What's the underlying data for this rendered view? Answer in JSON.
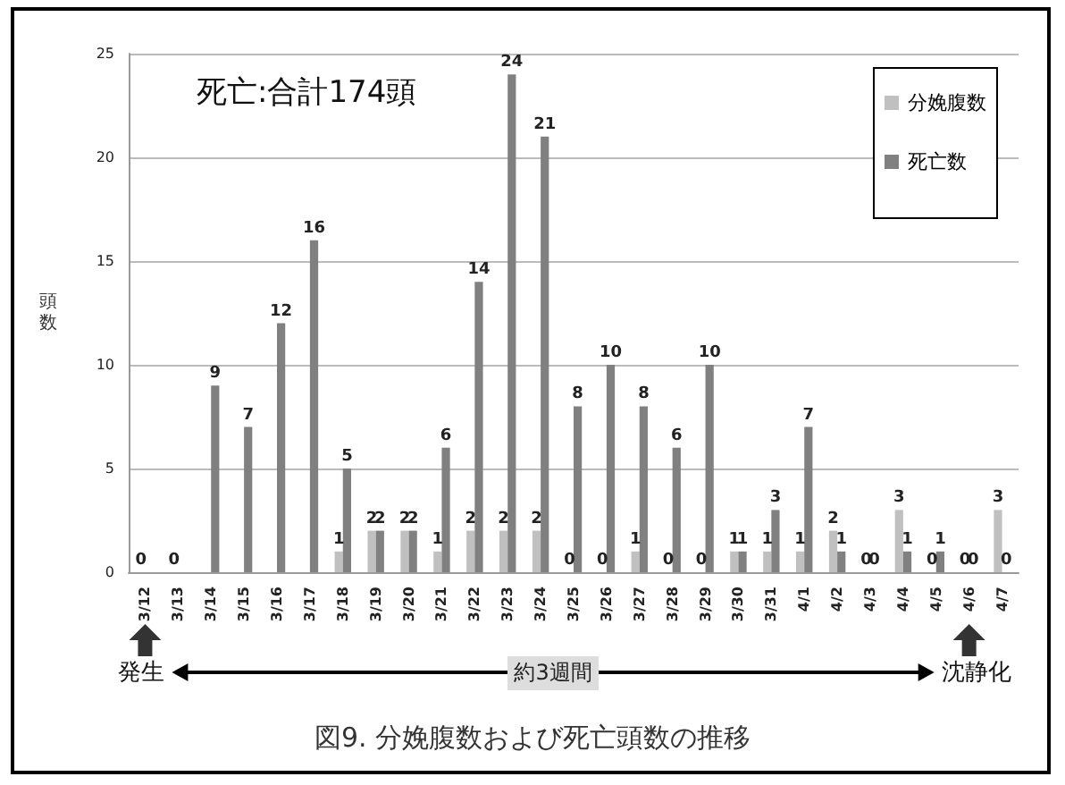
{
  "chart_data": {
    "type": "bar",
    "title": "図9. 分娩腹数および死亡頭数の推移",
    "ylabel": "頭数",
    "categories": [
      "3/12",
      "3/13",
      "3/14",
      "3/15",
      "3/16",
      "3/17",
      "3/18",
      "3/19",
      "3/20",
      "3/21",
      "3/22",
      "3/23",
      "3/24",
      "3/25",
      "3/26",
      "3/27",
      "3/28",
      "3/29",
      "3/30",
      "3/31",
      "4/1",
      "4/2",
      "4/3",
      "4/4",
      "4/5",
      "4/6",
      "4/7"
    ],
    "series": [
      {
        "name": "分娩腹数",
        "color": "#c0c0c0",
        "values": [
          0,
          0,
          null,
          null,
          null,
          null,
          1,
          2,
          2,
          1,
          2,
          2,
          2,
          0,
          0,
          1,
          0,
          0,
          1,
          1,
          1,
          2,
          0,
          3,
          0,
          0,
          3
        ]
      },
      {
        "name": "死亡数",
        "color": "#808080",
        "values": [
          null,
          null,
          9,
          7,
          12,
          16,
          5,
          2,
          2,
          6,
          14,
          24,
          21,
          8,
          10,
          8,
          6,
          10,
          1,
          3,
          7,
          1,
          0,
          1,
          1,
          0,
          0
        ]
      }
    ],
    "ylim": [
      0,
      25
    ],
    "yticks": [
      0,
      5,
      10,
      15,
      20,
      25
    ],
    "grid": "y",
    "legend": "top right",
    "data_labels": true,
    "annotations": [
      "死亡:合計174頭",
      "発生",
      "約3週間",
      "沈静化"
    ]
  }
}
